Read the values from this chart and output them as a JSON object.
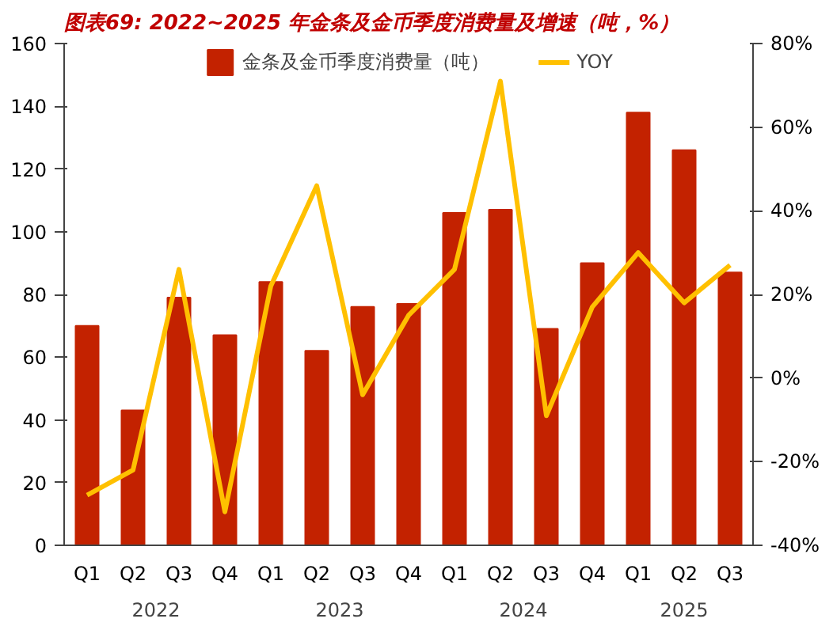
{
  "chart_data": {
    "type": "bar",
    "title": "图表69:  2022~2025 年金条及金币季度消费量及增速（吨，%）",
    "categories": [
      "Q1",
      "Q2",
      "Q3",
      "Q4",
      "Q1",
      "Q2",
      "Q3",
      "Q4",
      "Q1",
      "Q2",
      "Q3",
      "Q4",
      "Q1",
      "Q2",
      "Q3"
    ],
    "annotations": [
      "2022",
      "2023",
      "2024",
      "2025"
    ],
    "series": [
      {
        "name": "金条及金币季度消费量（吨）",
        "color": "#c32200",
        "values": [
          70,
          43,
          79,
          67,
          84,
          62,
          76,
          77,
          106,
          107,
          69,
          90,
          138,
          126,
          87
        ]
      },
      {
        "name": "YOY",
        "type": "line",
        "axis": "y2",
        "color": "#ffc000",
        "values": [
          -28,
          -22,
          26,
          -32,
          22,
          46,
          -4,
          15,
          26,
          71,
          -9,
          17,
          30,
          18,
          27
        ]
      }
    ],
    "ylim": [
      0,
      160
    ],
    "yticks": [
      0,
      20,
      40,
      60,
      80,
      100,
      120,
      140,
      160
    ],
    "y2lim": [
      -40,
      80
    ],
    "y2ticks": [
      {
        "value": -40,
        "label": "-40%"
      },
      {
        "value": -20,
        "label": "-20%"
      },
      {
        "value": 0,
        "label": "0%"
      },
      {
        "value": 20,
        "label": "20%"
      },
      {
        "value": 40,
        "label": "40%"
      },
      {
        "value": 60,
        "label": "60%"
      },
      {
        "value": 80,
        "label": "80%"
      }
    ],
    "legend": "top",
    "grid": false
  }
}
